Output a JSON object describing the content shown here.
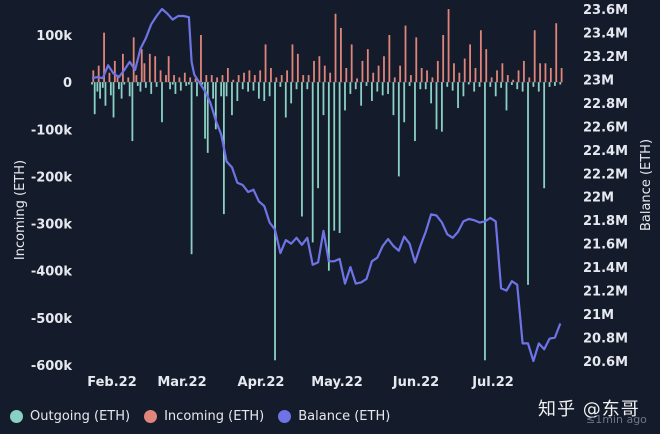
{
  "chart_data": {
    "type": "bar+line",
    "y_left": {
      "label": "Incoming (ETH)",
      "range": [
        -600000,
        160000
      ],
      "ticks": [
        100000,
        0,
        -100000,
        -200000,
        -300000,
        -400000,
        -500000,
        -600000
      ],
      "tick_labels": [
        "100k",
        "0",
        "-100k",
        "-200k",
        "-300k",
        "-400k",
        "-500k",
        "-600k"
      ]
    },
    "y_right": {
      "label": "Balance (ETH)",
      "range": [
        20500000,
        23650000
      ],
      "ticks": [
        23600000,
        23400000,
        23200000,
        23000000,
        22800000,
        22600000,
        22400000,
        22200000,
        22000000,
        21800000,
        21600000,
        21400000,
        21200000,
        21000000,
        20800000,
        20600000
      ],
      "tick_labels": [
        "23.6M",
        "23.4M",
        "23.2M",
        "23M",
        "22.8M",
        "22.6M",
        "22.4M",
        "22.2M",
        "22M",
        "21.8M",
        "21.6M",
        "21.4M",
        "21.2M",
        "21M",
        "20.8M",
        "20.6M"
      ]
    },
    "x_axis": {
      "categories": [
        "Feb.22",
        "Mar.22",
        "Apr.22",
        "May.22",
        "Jun.22",
        "Jul.22"
      ],
      "range_days": [
        0,
        175
      ]
    },
    "colors": {
      "outgoing": "#8ad0c4",
      "incoming": "#e0857a",
      "balance": "#6e74e6",
      "background": "#141b2b",
      "text": "#e6e9ef"
    },
    "series": [
      {
        "name": "Outgoing (ETH)",
        "kind": "bar",
        "x": [
          0,
          1,
          2,
          3,
          4,
          5,
          7,
          8,
          10,
          11,
          12,
          14,
          15,
          17,
          18,
          20,
          22,
          24,
          26,
          29,
          30,
          31,
          33,
          35,
          36,
          37,
          39,
          41,
          42,
          43,
          45,
          46,
          48,
          49,
          50,
          52,
          54,
          56,
          58,
          60,
          62,
          64,
          66,
          68,
          70,
          72,
          74,
          76,
          78,
          80,
          82,
          84,
          86,
          88,
          90,
          92,
          94,
          96,
          98,
          100,
          102,
          104,
          106,
          108,
          110,
          112,
          114,
          116,
          118,
          120,
          122,
          124,
          126,
          128,
          130,
          132,
          134,
          136,
          138,
          140,
          142,
          144,
          146,
          148,
          150,
          152,
          154,
          156,
          158,
          160,
          162,
          164,
          166,
          168,
          170,
          172,
          174
        ],
        "values": [
          -5000,
          -68000,
          -20000,
          -35000,
          -12000,
          -50000,
          -28000,
          -75000,
          -15000,
          -35000,
          -5000,
          -30000,
          -125000,
          -8000,
          -20000,
          -12000,
          -25000,
          -10000,
          -85000,
          -15000,
          -5000,
          -25000,
          -18000,
          -8000,
          -5000,
          -365000,
          -30000,
          -5000,
          -120000,
          -150000,
          -35000,
          -100000,
          -30000,
          -280000,
          -30000,
          -70000,
          -40000,
          -15000,
          -20000,
          -18000,
          -35000,
          -40000,
          -30000,
          -590000,
          -10000,
          -75000,
          -45000,
          -15000,
          -285000,
          -15000,
          -340000,
          -225000,
          -70000,
          -400000,
          -315000,
          -320000,
          -60000,
          -25000,
          -15000,
          -50000,
          -8000,
          -40000,
          -20000,
          -28000,
          -25000,
          -70000,
          -200000,
          -85000,
          -8000,
          -125000,
          -15000,
          -15000,
          -45000,
          -100000,
          -105000,
          -10000,
          -18000,
          -55000,
          -30000,
          -5000,
          -20000,
          -10000,
          -590000,
          -10000,
          -30000,
          -12000,
          -60000,
          -6000,
          -15000,
          -20000,
          -430000,
          -10000,
          -20000,
          -225000,
          -10000,
          -8000,
          -5000
        ]
      },
      {
        "name": "Incoming (ETH)",
        "kind": "bar",
        "x": [
          0,
          2,
          4,
          6,
          8,
          9,
          11,
          13,
          15,
          16,
          18,
          19,
          21,
          23,
          25,
          27,
          28,
          30,
          32,
          34,
          36,
          38,
          40,
          42,
          44,
          46,
          48,
          50,
          52,
          54,
          56,
          58,
          60,
          62,
          64,
          66,
          68,
          70,
          72,
          74,
          76,
          78,
          80,
          82,
          84,
          86,
          88,
          90,
          92,
          94,
          96,
          98,
          100,
          102,
          104,
          106,
          108,
          110,
          112,
          114,
          116,
          118,
          120,
          122,
          124,
          126,
          128,
          130,
          132,
          134,
          136,
          138,
          140,
          142,
          144,
          146,
          148,
          150,
          152,
          154,
          156,
          158,
          160,
          162,
          164,
          166,
          168,
          170,
          172,
          174
        ],
        "values": [
          25000,
          35000,
          105000,
          20000,
          45000,
          15000,
          60000,
          10000,
          95000,
          15000,
          70000,
          40000,
          60000,
          55000,
          25000,
          15000,
          55000,
          15000,
          10000,
          20000,
          10000,
          8000,
          100000,
          15000,
          15000,
          10000,
          15000,
          30000,
          5000,
          15000,
          20000,
          25000,
          15000,
          25000,
          80000,
          30000,
          10000,
          15000,
          25000,
          80000,
          60000,
          15000,
          15000,
          45000,
          55000,
          35000,
          20000,
          145000,
          115000,
          30000,
          80000,
          8000,
          45000,
          70000,
          20000,
          35000,
          55000,
          100000,
          10000,
          35000,
          120000,
          15000,
          95000,
          30000,
          25000,
          10000,
          45000,
          100000,
          155000,
          40000,
          20000,
          50000,
          80000,
          30000,
          110000,
          70000,
          10000,
          25000,
          40000,
          15000,
          5000,
          25000,
          45000,
          10000,
          110000,
          40000,
          40000,
          30000,
          125000,
          30000
        ]
      },
      {
        "name": "Balance (ETH)",
        "kind": "line",
        "x": [
          0,
          2,
          4,
          6,
          8,
          10,
          12,
          14,
          16,
          18,
          20,
          22,
          24,
          26,
          28,
          30,
          32,
          34,
          36,
          37,
          38,
          40,
          42,
          44,
          46,
          48,
          50,
          52,
          54,
          56,
          58,
          60,
          62,
          64,
          66,
          68,
          70,
          72,
          74,
          76,
          78,
          80,
          82,
          84,
          86,
          88,
          90,
          92,
          94,
          96,
          98,
          100,
          102,
          104,
          106,
          108,
          110,
          112,
          114,
          116,
          118,
          120,
          122,
          124,
          126,
          128,
          130,
          132,
          134,
          136,
          138,
          140,
          142,
          144,
          146,
          148,
          150,
          152,
          154,
          156,
          158,
          160,
          162,
          164,
          166,
          168,
          170,
          172,
          174
        ],
        "values": [
          23010000,
          23020000,
          23010000,
          23120000,
          23050000,
          23020000,
          23080000,
          23150000,
          23080000,
          23260000,
          23350000,
          23470000,
          23540000,
          23600000,
          23560000,
          23510000,
          23540000,
          23540000,
          23530000,
          23150000,
          23040000,
          22970000,
          22900000,
          22800000,
          22650000,
          22530000,
          22300000,
          22250000,
          22120000,
          22100000,
          22040000,
          22060000,
          21960000,
          21920000,
          21780000,
          21720000,
          21520000,
          21630000,
          21600000,
          21650000,
          21590000,
          21650000,
          21420000,
          21440000,
          21710000,
          21450000,
          21450000,
          21470000,
          21260000,
          21400000,
          21260000,
          21270000,
          21300000,
          21450000,
          21480000,
          21580000,
          21640000,
          21580000,
          21540000,
          21660000,
          21600000,
          21440000,
          21580000,
          21700000,
          21850000,
          21840000,
          21780000,
          21680000,
          21650000,
          21700000,
          21790000,
          21810000,
          21800000,
          21780000,
          21790000,
          21820000,
          21790000,
          21220000,
          21200000,
          21280000,
          21250000,
          20750000,
          20750000,
          20600000,
          20750000,
          20700000,
          20790000,
          20800000,
          20920000
        ]
      }
    ]
  },
  "legend": [
    {
      "label": "Outgoing (ETH)",
      "color": "#8ad0c4"
    },
    {
      "label": "Incoming (ETH)",
      "color": "#e0857a"
    },
    {
      "label": "Balance (ETH)",
      "color": "#6e74e6"
    }
  ],
  "watermark": "知乎 @东哥",
  "timestamp": "≤1min ago"
}
